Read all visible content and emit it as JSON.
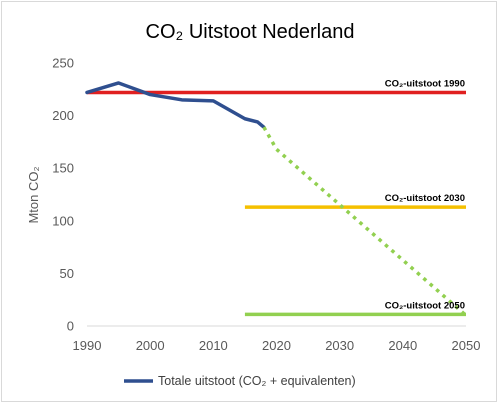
{
  "chart_data": {
    "type": "line",
    "title": "CO₂ Uitstoot Nederland",
    "xlabel": "",
    "ylabel": "Mton CO₂",
    "xlim": [
      1990,
      2050
    ],
    "ylim": [
      0,
      250
    ],
    "x_ticks": [
      1990,
      2000,
      2010,
      2020,
      2030,
      2040,
      2050
    ],
    "y_ticks": [
      0,
      50,
      100,
      150,
      200,
      250
    ],
    "grid": false,
    "legend_position": "bottom",
    "colors": {
      "emissions": "#2f4f8f",
      "projection": "#92d050",
      "ref1990": "#e02020",
      "target2030": "#f5c000",
      "target2050": "#92d050",
      "axis": "#d9d9d9"
    },
    "series": [
      {
        "name": "Totale uitstoot (CO₂ + equivalenten)",
        "style": "solid",
        "points": [
          [
            1990,
            222
          ],
          [
            1995,
            231
          ],
          [
            2000,
            220
          ],
          [
            2005,
            215
          ],
          [
            2010,
            214
          ],
          [
            2015,
            197
          ],
          [
            2017,
            194
          ],
          [
            2018,
            189
          ]
        ]
      },
      {
        "style": "dotted",
        "points": [
          [
            2018,
            189
          ],
          [
            2020,
            168
          ],
          [
            2050,
            10
          ]
        ]
      }
    ],
    "reference_lines": [
      {
        "label": "CO₂-uitstoot 1990",
        "y": 222,
        "x_start": 1990,
        "x_end": 2050,
        "color_key": "ref1990"
      },
      {
        "label": "CO₂-uitstoot 2030",
        "y": 113,
        "x_start": 2015,
        "x_end": 2050,
        "color_key": "target2030"
      },
      {
        "label": "CO₂-uitstoot 2050",
        "y": 11,
        "x_start": 2015,
        "x_end": 2050,
        "color_key": "target2050"
      }
    ]
  }
}
